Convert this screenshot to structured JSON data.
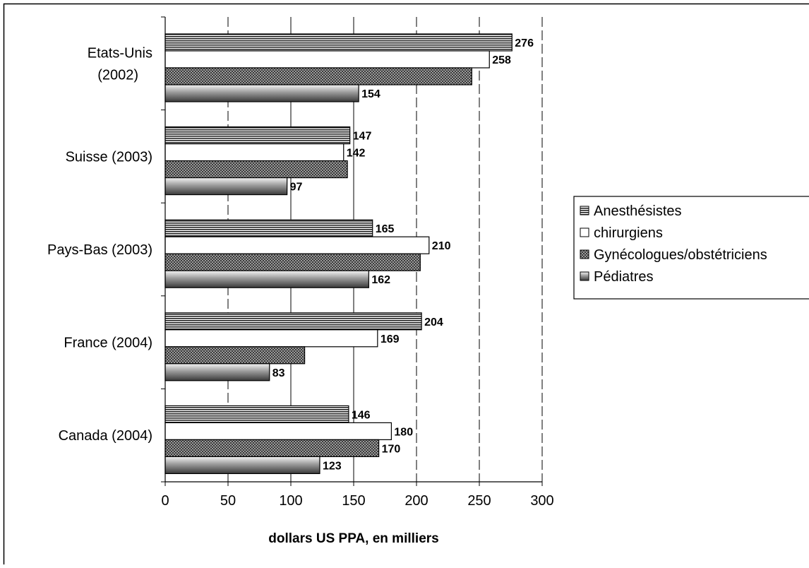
{
  "chart_data": {
    "type": "bar",
    "orientation": "horizontal",
    "categories": [
      [
        "Etats-Unis",
        "(2002)"
      ],
      [
        "Suisse (2003)"
      ],
      [
        "Pays-Bas (2003)"
      ],
      [
        "France (2004)"
      ],
      [
        "Canada (2004)"
      ]
    ],
    "series": [
      {
        "name": "Anesthésistes",
        "values": [
          276,
          147,
          165,
          204,
          146
        ],
        "pattern": "horizontal-stripes"
      },
      {
        "name": "chirurgiens",
        "values": [
          258,
          142,
          210,
          169,
          180
        ],
        "pattern": "white"
      },
      {
        "name": "Gynécologues/obstétriciens",
        "values": [
          244,
          145,
          203,
          111,
          170
        ],
        "pattern": "checker"
      },
      {
        "name": "Pédiatres",
        "values": [
          154,
          97,
          162,
          83,
          123
        ],
        "pattern": "gradient"
      }
    ],
    "data_labels": [
      [
        "276",
        "258",
        "",
        "154"
      ],
      [
        "147",
        "142",
        "",
        "97"
      ],
      [
        "165",
        "210",
        "",
        "162"
      ],
      [
        "204",
        "169",
        "",
        "83"
      ],
      [
        "146",
        "180",
        "170",
        "123"
      ]
    ],
    "xlabel": "dollars US PPA, en milliers",
    "xlim": [
      0,
      300
    ],
    "xticks": [
      0,
      50,
      100,
      150,
      200,
      250,
      300
    ],
    "xtick_labels": [
      "0",
      "50",
      "100",
      "150",
      "200",
      "250",
      "300"
    ],
    "grid": "vertical dashed",
    "legend_position": "right"
  }
}
